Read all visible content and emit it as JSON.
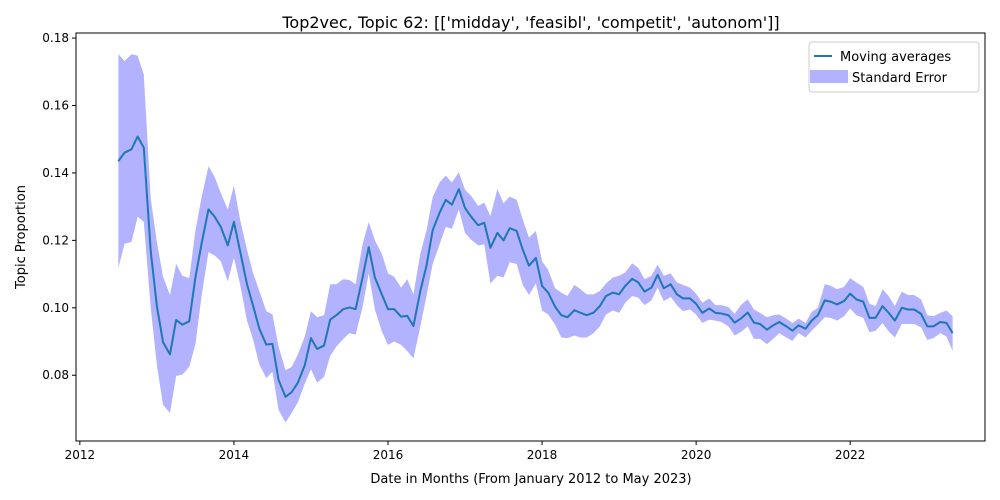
{
  "chart_data": {
    "type": "line",
    "title": "Top2vec, Topic 62: [['midday', 'feasibl', 'competit', 'autonom']]",
    "xlabel": "Date in Months (From January 2012 to May 2023)",
    "ylabel": "Topic Proportion",
    "xlim": [
      2011.95,
      2023.75
    ],
    "ylim": [
      0.0605,
      0.1815
    ],
    "x_ticks": [
      2012,
      2014,
      2016,
      2018,
      2020,
      2022
    ],
    "y_ticks": [
      0.08,
      0.1,
      0.12,
      0.14,
      0.16,
      0.18
    ],
    "y_tick_labels": [
      "0.08",
      "0.10",
      "0.12",
      "0.14",
      "0.16",
      "0.18"
    ],
    "legend_position": "top-right",
    "colors": {
      "line": "#1f77b4",
      "band": "#0000ff"
    },
    "series": [
      {
        "name": "Moving averages",
        "x": [
          2012.5,
          2012.58,
          2012.67,
          2012.75,
          2012.83,
          2012.92,
          2013.0,
          2013.08,
          2013.17,
          2013.25,
          2013.33,
          2013.42,
          2013.5,
          2013.58,
          2013.67,
          2013.75,
          2013.83,
          2013.92,
          2014.0,
          2014.08,
          2014.17,
          2014.25,
          2014.33,
          2014.42,
          2014.5,
          2014.58,
          2014.67,
          2014.75,
          2014.83,
          2014.92,
          2015.0,
          2015.08,
          2015.17,
          2015.25,
          2015.33,
          2015.42,
          2015.5,
          2015.58,
          2015.67,
          2015.75,
          2015.83,
          2015.92,
          2016.0,
          2016.08,
          2016.17,
          2016.25,
          2016.33,
          2016.42,
          2016.5,
          2016.58,
          2016.67,
          2016.75,
          2016.83,
          2016.92,
          2017.0,
          2017.08,
          2017.17,
          2017.25,
          2017.33,
          2017.42,
          2017.5,
          2017.58,
          2017.67,
          2017.75,
          2017.83,
          2017.92,
          2018.0,
          2018.08,
          2018.17,
          2018.25,
          2018.33,
          2018.42,
          2018.5,
          2018.58,
          2018.67,
          2018.75,
          2018.83,
          2018.92,
          2019.0,
          2019.08,
          2019.17,
          2019.25,
          2019.33,
          2019.42,
          2019.5,
          2019.58,
          2019.67,
          2019.75,
          2019.83,
          2019.92,
          2020.0,
          2020.08,
          2020.17,
          2020.25,
          2020.33,
          2020.42,
          2020.5,
          2020.58,
          2020.67,
          2020.75,
          2020.83,
          2020.92,
          2021.0,
          2021.08,
          2021.17,
          2021.25,
          2021.33,
          2021.42,
          2021.5,
          2021.58,
          2021.67,
          2021.75,
          2021.83,
          2021.92,
          2022.0,
          2022.08,
          2022.17,
          2022.25,
          2022.33,
          2022.42,
          2022.5,
          2022.58,
          2022.67,
          2022.75,
          2022.83,
          2022.92,
          2023.0,
          2023.08,
          2023.17,
          2023.25,
          2023.33
        ],
        "values": [
          0.1435,
          0.146,
          0.147,
          0.1508,
          0.1475,
          0.1168,
          0.1005,
          0.0898,
          0.0862,
          0.0964,
          0.095,
          0.096,
          0.109,
          0.119,
          0.1292,
          0.127,
          0.124,
          0.1185,
          0.1255,
          0.1168,
          0.107,
          0.1005,
          0.0938,
          0.0891,
          0.0893,
          0.0786,
          0.0736,
          0.075,
          0.0778,
          0.083,
          0.091,
          0.0878,
          0.0888,
          0.0965,
          0.0978,
          0.0996,
          0.1001,
          0.0996,
          0.109,
          0.118,
          0.109,
          0.104,
          0.0996,
          0.0996,
          0.0974,
          0.0976,
          0.0946,
          0.105,
          0.1125,
          0.123,
          0.1282,
          0.132,
          0.1306,
          0.1352,
          0.1296,
          0.127,
          0.1245,
          0.1252,
          0.1178,
          0.1222,
          0.12,
          0.1236,
          0.1228,
          0.1172,
          0.1125,
          0.1148,
          0.1065,
          0.1045,
          0.1003,
          0.0978,
          0.0972,
          0.0993,
          0.0985,
          0.0978,
          0.0986,
          0.1005,
          0.1035,
          0.1045,
          0.104,
          0.1065,
          0.1086,
          0.1075,
          0.1048,
          0.106,
          0.1098,
          0.1058,
          0.107,
          0.104,
          0.1028,
          0.1028,
          0.1012,
          0.0985,
          0.0998,
          0.0985,
          0.0983,
          0.0978,
          0.0956,
          0.0968,
          0.0986,
          0.0956,
          0.0952,
          0.0935,
          0.0948,
          0.0958,
          0.0945,
          0.0932,
          0.0948,
          0.0938,
          0.0962,
          0.0978,
          0.1022,
          0.1018,
          0.101,
          0.102,
          0.1042,
          0.1025,
          0.1018,
          0.097,
          0.097,
          0.1005,
          0.0985,
          0.0962,
          0.1,
          0.0995,
          0.0995,
          0.0982,
          0.0945,
          0.0945,
          0.0958,
          0.0955,
          0.0925
        ]
      }
    ],
    "band": {
      "name": "Standard Error",
      "x": [
        2012.5,
        2012.58,
        2012.67,
        2012.75,
        2012.83,
        2012.92,
        2013.0,
        2013.08,
        2013.17,
        2013.25,
        2013.33,
        2013.42,
        2013.5,
        2013.58,
        2013.67,
        2013.75,
        2013.83,
        2013.92,
        2014.0,
        2014.08,
        2014.17,
        2014.25,
        2014.33,
        2014.42,
        2014.5,
        2014.58,
        2014.67,
        2014.75,
        2014.83,
        2014.92,
        2015.0,
        2015.08,
        2015.17,
        2015.25,
        2015.33,
        2015.42,
        2015.5,
        2015.58,
        2015.67,
        2015.75,
        2015.83,
        2015.92,
        2016.0,
        2016.08,
        2016.17,
        2016.25,
        2016.33,
        2016.42,
        2016.5,
        2016.58,
        2016.67,
        2016.75,
        2016.83,
        2016.92,
        2017.0,
        2017.08,
        2017.17,
        2017.25,
        2017.33,
        2017.42,
        2017.5,
        2017.58,
        2017.67,
        2017.75,
        2017.83,
        2017.92,
        2018.0,
        2018.08,
        2018.17,
        2018.25,
        2018.33,
        2018.42,
        2018.5,
        2018.58,
        2018.67,
        2018.75,
        2018.83,
        2018.92,
        2019.0,
        2019.08,
        2019.17,
        2019.25,
        2019.33,
        2019.42,
        2019.5,
        2019.58,
        2019.67,
        2019.75,
        2019.83,
        2019.92,
        2020.0,
        2020.08,
        2020.17,
        2020.25,
        2020.33,
        2020.42,
        2020.5,
        2020.58,
        2020.67,
        2020.75,
        2020.83,
        2020.92,
        2021.0,
        2021.08,
        2021.17,
        2021.25,
        2021.33,
        2021.42,
        2021.5,
        2021.58,
        2021.67,
        2021.75,
        2021.83,
        2021.92,
        2022.0,
        2022.08,
        2022.17,
        2022.25,
        2022.33,
        2022.42,
        2022.5,
        2022.58,
        2022.67,
        2022.75,
        2022.83,
        2022.92,
        2023.0,
        2023.08,
        2023.17,
        2023.25,
        2023.33
      ],
      "upper": [
        0.1752,
        0.1732,
        0.1752,
        0.1748,
        0.1692,
        0.1325,
        0.1195,
        0.1092,
        0.1038,
        0.113,
        0.1095,
        0.1088,
        0.1228,
        0.1328,
        0.142,
        0.1388,
        0.134,
        0.1292,
        0.1362,
        0.1262,
        0.1172,
        0.1102,
        0.105,
        0.099,
        0.098,
        0.0885,
        0.0815,
        0.0825,
        0.0862,
        0.0915,
        0.099,
        0.0972,
        0.0978,
        0.107,
        0.107,
        0.1085,
        0.1082,
        0.107,
        0.1188,
        0.1255,
        0.12,
        0.116,
        0.1102,
        0.1092,
        0.106,
        0.1085,
        0.104,
        0.116,
        0.123,
        0.1328,
        0.1372,
        0.1392,
        0.1372,
        0.1402,
        0.135,
        0.1332,
        0.1302,
        0.1312,
        0.1272,
        0.1352,
        0.131,
        0.133,
        0.132,
        0.1262,
        0.1208,
        0.1228,
        0.1138,
        0.1112,
        0.1058,
        0.1045,
        0.1035,
        0.1068,
        0.1055,
        0.104,
        0.104,
        0.105,
        0.1072,
        0.109,
        0.1095,
        0.1105,
        0.1132,
        0.1118,
        0.1085,
        0.1095,
        0.1128,
        0.1095,
        0.1102,
        0.1075,
        0.1068,
        0.106,
        0.1042,
        0.1015,
        0.1028,
        0.1008,
        0.1008,
        0.1002,
        0.0982,
        0.1008,
        0.1025,
        0.0995,
        0.0985,
        0.0972,
        0.0978,
        0.098,
        0.0968,
        0.0955,
        0.0968,
        0.0955,
        0.0988,
        0.1,
        0.107,
        0.1065,
        0.1055,
        0.1062,
        0.1088,
        0.1075,
        0.1062,
        0.1012,
        0.1005,
        0.1055,
        0.1035,
        0.1005,
        0.1048,
        0.1038,
        0.1038,
        0.1025,
        0.0978,
        0.0975,
        0.0985,
        0.0992,
        0.0975
      ],
      "lower": [
        0.1118,
        0.119,
        0.1195,
        0.127,
        0.1255,
        0.1,
        0.083,
        0.0712,
        0.0688,
        0.0798,
        0.0802,
        0.0825,
        0.0892,
        0.1035,
        0.1165,
        0.1155,
        0.1138,
        0.1078,
        0.1148,
        0.107,
        0.0962,
        0.0905,
        0.0832,
        0.0792,
        0.081,
        0.0697,
        0.066,
        0.0688,
        0.072,
        0.0775,
        0.0818,
        0.0778,
        0.0795,
        0.0858,
        0.0885,
        0.0908,
        0.0925,
        0.092,
        0.1002,
        0.1102,
        0.0995,
        0.093,
        0.089,
        0.09,
        0.089,
        0.0872,
        0.085,
        0.0945,
        0.1035,
        0.113,
        0.1188,
        0.124,
        0.1235,
        0.1292,
        0.1222,
        0.1202,
        0.1185,
        0.1188,
        0.1072,
        0.1095,
        0.109,
        0.1135,
        0.113,
        0.1068,
        0.1038,
        0.1072,
        0.0992,
        0.098,
        0.095,
        0.0912,
        0.091,
        0.0918,
        0.0912,
        0.0912,
        0.0925,
        0.0945,
        0.098,
        0.0992,
        0.0985,
        0.1015,
        0.1035,
        0.103,
        0.1008,
        0.1022,
        0.106,
        0.102,
        0.1032,
        0.1008,
        0.099,
        0.0995,
        0.098,
        0.0955,
        0.0965,
        0.0962,
        0.0958,
        0.0945,
        0.0918,
        0.0928,
        0.0945,
        0.0908,
        0.0908,
        0.0892,
        0.0908,
        0.0925,
        0.0912,
        0.0902,
        0.0925,
        0.0912,
        0.0932,
        0.095,
        0.0972,
        0.097,
        0.0962,
        0.0975,
        0.0998,
        0.0978,
        0.097,
        0.0928,
        0.0932,
        0.0955,
        0.093,
        0.0912,
        0.0952,
        0.0952,
        0.0952,
        0.0942,
        0.0905,
        0.091,
        0.0925,
        0.0915,
        0.0872
      ]
    }
  }
}
